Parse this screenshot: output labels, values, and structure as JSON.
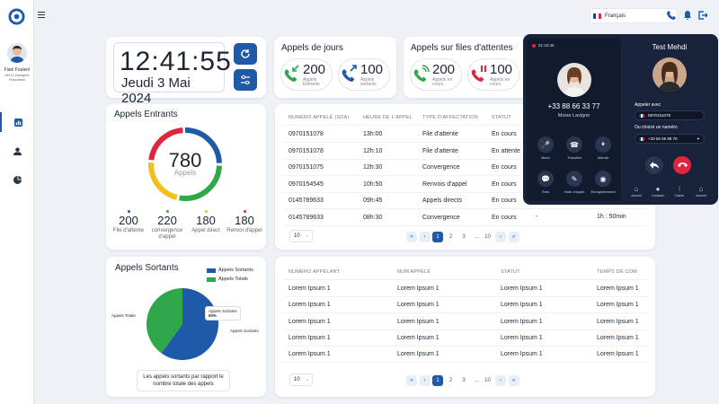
{
  "user": {
    "name": "Fiani Foulenì",
    "role": "UI/UX Designer",
    "company": "Roundesk"
  },
  "language": {
    "selected": "Français"
  },
  "clock": {
    "time": "12:41:55",
    "date": "Jeudi 3 Mai 2024"
  },
  "appels_jour": {
    "title": "Appels de jours",
    "entrants_value": "200",
    "entrants_label": "Appels Entrants",
    "sortants_value": "100",
    "sortants_label": "Appels sortants"
  },
  "appels_files": {
    "title": "Appels sur files d'attentes",
    "encours_value": "200",
    "encours_label": "Appels en cours",
    "arretes_value": "100",
    "arretes_label": "Appels en cours"
  },
  "appels_entrants": {
    "title": "Appels Entrants",
    "total": "780",
    "total_label": "Appels",
    "breakdown": [
      {
        "value": "200",
        "label": "File d'attente",
        "color": "#1e5aa8"
      },
      {
        "value": "220",
        "label": "convergence d'appel",
        "color": "#2ea84a"
      },
      {
        "value": "180",
        "label": "Appel direct",
        "color": "#f2c01d"
      },
      {
        "value": "180",
        "label": "Renvoi d'appel",
        "color": "#e0263a"
      }
    ]
  },
  "table1": {
    "headers": [
      "NUMÉRO APPELÉ (SDA)",
      "HEURE DE L'APPEL",
      "TYPE D'AFFECTATION",
      "STATUT"
    ],
    "rows": [
      [
        "0970151078",
        "13h:00",
        "File d'attente",
        "En cours"
      ],
      [
        "0970151078",
        "12h:10",
        "File d'attente",
        "En attente"
      ],
      [
        "0970151075",
        "12h:30",
        "Convergence",
        "En cours"
      ],
      [
        "0970154545",
        "10h:50",
        "Renvois d'appel",
        "En cours"
      ],
      [
        "0145789633",
        "09h:45",
        "Appels directs",
        "En cours"
      ],
      [
        "0145789633",
        "08h:30",
        "Convergence",
        "En cours"
      ]
    ],
    "extra_dash": "-",
    "extra_duration": "1h : 50min",
    "page_size": "10",
    "pages": [
      "1",
      "2",
      "3",
      "...",
      "10"
    ]
  },
  "appels_sortants": {
    "title": "Appels Sortants",
    "legend": [
      {
        "label": "Appels Sortants",
        "color": "#1e5aa8"
      },
      {
        "label": "Appels Totale",
        "color": "#2ea84a"
      }
    ],
    "tooltip_title": "Appels Sortants",
    "tooltip_value": "60%",
    "label_totale": "Appels Totale",
    "label_sortants": "Appels Sortants",
    "caption": "Les appels sortants par rapport le nombre totale des appels",
    "sortants_share": 0.6
  },
  "chart_data": {
    "type": "pie",
    "title": "Appels Sortants",
    "categories": [
      "Appels Sortants",
      "Appels Totale"
    ],
    "values": [
      60,
      40
    ],
    "legend": "top-right"
  },
  "table2": {
    "headers": [
      "NUMÉRO APPELANT",
      "NUM APPELÉ",
      "STATUT",
      "TEMPS DE COM"
    ],
    "rows": [
      [
        "Lorem Ipsum 1",
        "Lorem Ipsum 1",
        "Lorem Ipsum 1",
        "Lorem Ipsum 1"
      ],
      [
        "Lorem Ipsum 1",
        "Lorem Ipsum 1",
        "Lorem Ipsum 1",
        "Lorem Ipsum 1"
      ],
      [
        "Lorem Ipsum 1",
        "Lorem Ipsum 1",
        "Lorem Ipsum 1",
        "Lorem Ipsum 1"
      ],
      [
        "Lorem Ipsum 1",
        "Lorem Ipsum 1",
        "Lorem Ipsum 1",
        "Lorem Ipsum 1"
      ],
      [
        "Lorem Ipsum 1",
        "Lorem Ipsum 1",
        "Lorem Ipsum 1",
        "Lorem Ipsum 1"
      ]
    ],
    "page_size": "10",
    "pages": [
      "1",
      "2",
      "3",
      "...",
      "10"
    ]
  },
  "call": {
    "timer": "01:10:45",
    "number": "+33 88 66 33 77",
    "caller": "Moise Lavigne",
    "controls": [
      "Micro",
      "Transfert",
      "Attente",
      "Sms",
      "Note d'appel",
      "Enregistrement"
    ],
    "right_title": "Test Mehdi",
    "appeler_avec": "Appeler avec",
    "appeler_value": "0970151078",
    "choisir": "Ou choisir un numéro",
    "choisir_value": "+33 56 55 88 78",
    "bottom_nav": [
      "Accueil",
      "Contacts",
      "Clavier",
      "Accueil"
    ]
  }
}
